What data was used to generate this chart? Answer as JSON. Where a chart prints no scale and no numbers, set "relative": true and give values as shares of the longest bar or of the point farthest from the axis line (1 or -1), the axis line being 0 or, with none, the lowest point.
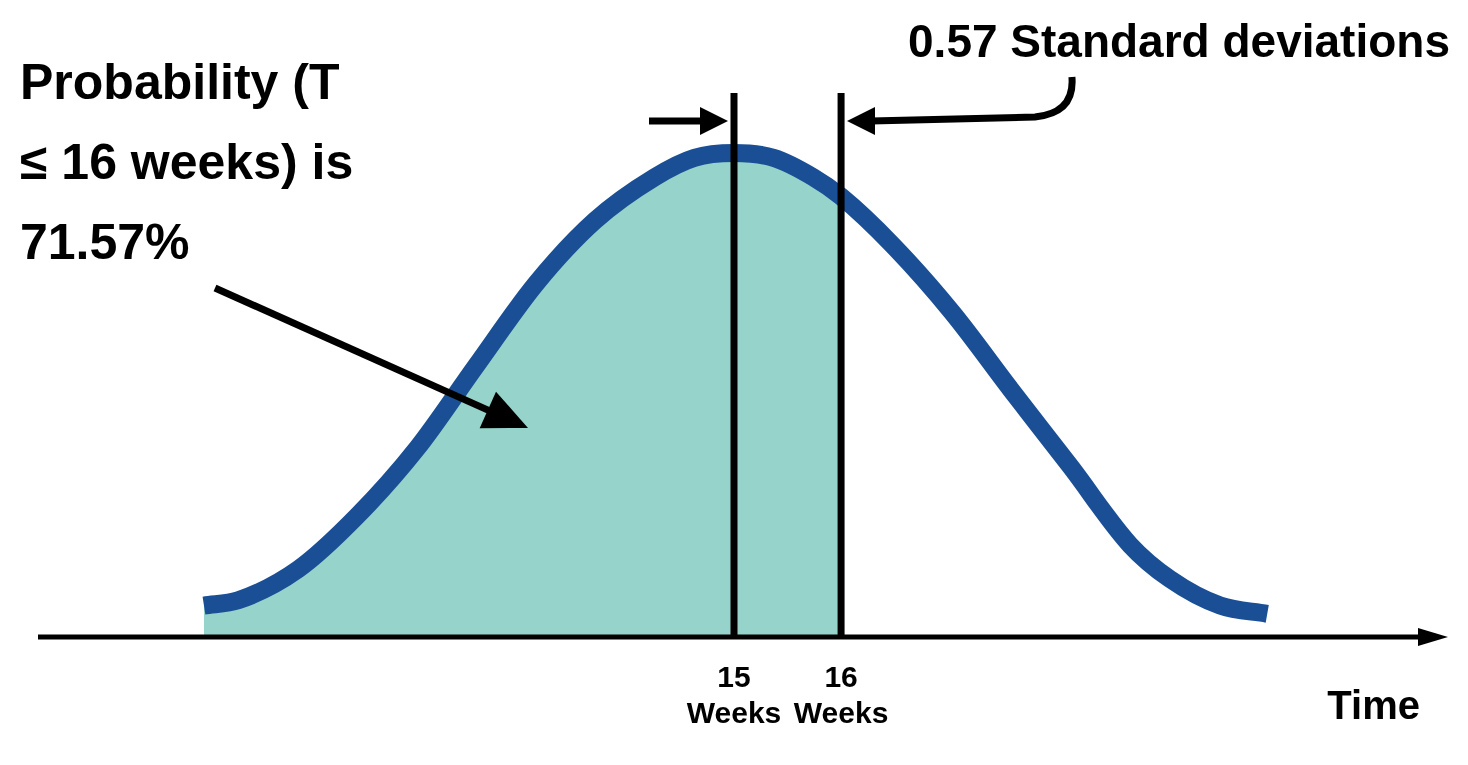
{
  "chart_data": {
    "type": "line",
    "relative": true,
    "xlabel": "Time",
    "marker": "none",
    "xlim": [
      8.5,
      21.5
    ],
    "xticks": [
      {
        "value": 15,
        "label": "15\nWeeks"
      },
      {
        "value": 16,
        "label": "16\nWeeks"
      }
    ],
    "series": [
      {
        "type": "area",
        "color": "#96d3cb",
        "x": [
          10.05,
          10.37,
          10.93,
          11.48,
          12.04,
          12.59,
          13.15,
          13.7,
          14.26,
          14.63,
          15,
          15.37,
          15.74,
          16
        ],
        "values": [
          0.065,
          0.076,
          0.14,
          0.25,
          0.39,
          0.56,
          0.73,
          0.86,
          0.95,
          0.99,
          1,
          0.99,
          0.95,
          0.91
        ]
      },
      {
        "type": "line",
        "color": "#1a4f96",
        "x": [
          10.05,
          10.37,
          10.93,
          11.48,
          12.04,
          12.59,
          13.15,
          13.7,
          14.26,
          14.63,
          15,
          15.37,
          15.74,
          16,
          16.48,
          17.04,
          17.59,
          18.15,
          18.7,
          19.07,
          19.54,
          19.98
        ],
        "values": [
          0.065,
          0.076,
          0.14,
          0.25,
          0.39,
          0.56,
          0.73,
          0.86,
          0.95,
          0.99,
          1,
          0.99,
          0.95,
          0.91,
          0.81,
          0.67,
          0.51,
          0.35,
          0.19,
          0.12,
          0.065,
          0.048
        ]
      }
    ],
    "ref_lines": [
      {
        "axis": "x",
        "value": 15,
        "color": "#000000"
      },
      {
        "axis": "x",
        "value": 16,
        "color": "#000000"
      }
    ],
    "annotations": [
      "Probability (T ≤ 16 weeks) is 71.57%",
      "0.57 Standard deviations"
    ]
  }
}
